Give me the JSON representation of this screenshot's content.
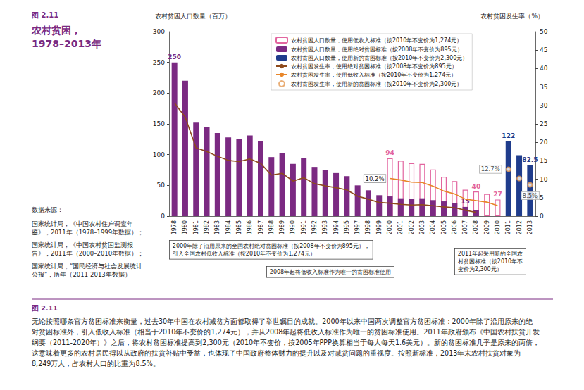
{
  "chart_data": {
    "type": "bar",
    "figure_label": "图 2.11",
    "title": "农村贫困，\n1978–2013年",
    "y_label": "农村贫困人口数量（百万）",
    "y2_label": "农村贫困发生率（%）",
    "categories": [
      "1978",
      "1980",
      "1981",
      "1982",
      "1983",
      "1984",
      "1985",
      "1986",
      "1987",
      "1988",
      "1989",
      "1990",
      "1991",
      "1992",
      "1993",
      "1994",
      "1995",
      "1997",
      "1998",
      "1999",
      "2000",
      "2001",
      "2002",
      "2003",
      "2004",
      "2005",
      "2006",
      "2007",
      "2008",
      "2009",
      "2010",
      "2011",
      "2012",
      "2013"
    ],
    "ylim": [
      0,
      300
    ],
    "yticks": [
      0,
      50,
      100,
      150,
      200,
      250,
      300
    ],
    "y2lim": [
      0,
      50
    ],
    "y2ticks": [
      0,
      5,
      10,
      15,
      20,
      25,
      30,
      35,
      40,
      45,
      50
    ],
    "grid": false,
    "legend": "top",
    "data_labels": true,
    "series": [
      {
        "name": "农村贫困人口数量，使用低收入标准（按2010年不变价为1,274元）",
        "type": "bar",
        "axis": "y",
        "color": "#e2659f",
        "marker": "hollow",
        "values": [
          null,
          null,
          null,
          null,
          null,
          null,
          null,
          null,
          null,
          null,
          null,
          null,
          null,
          null,
          null,
          null,
          null,
          null,
          null,
          null,
          94,
          90,
          86,
          85,
          76,
          64,
          57,
          43,
          40,
          36,
          27,
          null,
          null,
          null
        ],
        "value_labels": [
          null,
          null,
          null,
          null,
          null,
          null,
          null,
          null,
          null,
          null,
          null,
          null,
          null,
          null,
          null,
          null,
          null,
          null,
          null,
          null,
          "94",
          null,
          null,
          null,
          null,
          null,
          null,
          null,
          "40",
          null,
          "27",
          null,
          null,
          null
        ]
      },
      {
        "name": "农村贫困人口数量，使用绝对贫困标准（按2008年不变价为895元）",
        "type": "bar",
        "axis": "y",
        "color": "#7b2a82",
        "values": [
          250,
          220,
          152,
          145,
          135,
          128,
          125,
          131,
          122,
          96,
          102,
          85,
          94,
          80,
          75,
          70,
          65,
          50,
          42,
          34,
          32,
          29,
          28,
          29,
          26,
          24,
          21,
          15,
          10,
          null,
          null,
          null,
          null,
          null
        ],
        "value_labels": [
          "250",
          null,
          null,
          null,
          null,
          null,
          null,
          null,
          null,
          null,
          null,
          null,
          null,
          null,
          null,
          null,
          null,
          null,
          null,
          null,
          null,
          null,
          null,
          null,
          null,
          null,
          null,
          "15",
          null,
          null,
          null,
          null,
          null,
          null
        ]
      },
      {
        "name": "农村贫困人口数量，使用新的贫困标准（按2010年不变价为2,300元）",
        "type": "bar",
        "axis": "y",
        "color": "#1f3c8c",
        "values": [
          null,
          null,
          null,
          null,
          null,
          null,
          null,
          null,
          null,
          null,
          null,
          null,
          null,
          null,
          null,
          null,
          null,
          null,
          null,
          null,
          null,
          null,
          null,
          null,
          null,
          null,
          null,
          null,
          null,
          null,
          null,
          122,
          99,
          82.5
        ],
        "value_labels": [
          null,
          null,
          null,
          null,
          null,
          null,
          null,
          null,
          null,
          null,
          null,
          null,
          null,
          null,
          null,
          null,
          null,
          null,
          null,
          null,
          null,
          null,
          null,
          null,
          null,
          null,
          null,
          null,
          null,
          null,
          null,
          "122",
          null,
          "82.5"
        ]
      },
      {
        "name": "农村贫困发生率，使用绝对贫困标准（按2008年不变价为895元）",
        "type": "line",
        "axis": "y2",
        "color": "#8e4a1c",
        "line_style": "solid",
        "values": [
          30.7,
          26.8,
          18.5,
          17.5,
          16.2,
          15.1,
          14.8,
          15.5,
          14.3,
          11.1,
          11.6,
          9.5,
          10.4,
          8.8,
          8.2,
          7.7,
          7.1,
          5.4,
          4.6,
          3.7,
          3.5,
          3.2,
          3.0,
          3.1,
          2.8,
          2.5,
          2.3,
          1.6,
          1.0,
          null,
          null,
          null,
          null,
          null
        ]
      },
      {
        "name": "农村贫困发生率，使用低收入标准（按2010年不变价为1,274元）",
        "type": "line",
        "axis": "y2",
        "color": "#e8862a",
        "line_style": "solid",
        "values": [
          null,
          null,
          null,
          null,
          null,
          null,
          null,
          null,
          null,
          null,
          null,
          null,
          null,
          null,
          null,
          null,
          null,
          null,
          null,
          null,
          10.2,
          9.8,
          9.2,
          9.1,
          8.1,
          6.8,
          6.0,
          4.6,
          4.2,
          3.8,
          2.8,
          null,
          null,
          null
        ],
        "value_labels": [
          null,
          null,
          null,
          null,
          null,
          null,
          null,
          null,
          null,
          null,
          null,
          null,
          null,
          null,
          null,
          null,
          null,
          null,
          null,
          null,
          "10.2%",
          null,
          null,
          null,
          null,
          null,
          null,
          null,
          null,
          null,
          null,
          null,
          null,
          null
        ]
      },
      {
        "name": "农村贫困发生率，使用新的贫困标准（按2010年不变价为2,300元）",
        "type": "scatter",
        "axis": "y2",
        "color": "#e39a55",
        "marker": "emptyCircle",
        "values": [
          null,
          null,
          null,
          null,
          null,
          null,
          null,
          null,
          null,
          null,
          null,
          null,
          null,
          null,
          null,
          null,
          null,
          null,
          null,
          null,
          null,
          null,
          null,
          null,
          null,
          null,
          null,
          null,
          null,
          null,
          null,
          12.7,
          10.2,
          8.5
        ],
        "value_labels": [
          null,
          null,
          null,
          null,
          null,
          null,
          null,
          null,
          null,
          null,
          null,
          null,
          null,
          null,
          null,
          null,
          null,
          null,
          null,
          null,
          null,
          null,
          null,
          null,
          null,
          null,
          null,
          null,
          null,
          null,
          null,
          "12.7%",
          null,
          "8.5%"
        ]
      }
    ],
    "annotations": [
      "2000年除了沿用原来的全国农村绝对贫困标准（按2008年不变价为895元），\n引入全国农村低收入标准（按2010年不变价为1,274元）",
      "2008年起将低收入标准作为唯一的贫困标准使用",
      "2011年起采用新的全国农\n村贫困标准（按2010年不\n变价为2,300元）"
    ],
    "sources_title": "数据来源：",
    "sources": [
      "国家统计局，《中国农村住户调查年\n鉴》，2011年（1978–1999年数据）；",
      "国家统计局，《中国农村贫困监测报\n告》，2011年（2000–2010年数据）；",
      "国家统计局，“国民经济与社会发展统计\n公报”，历年（2011-2013年数据）"
    ],
    "caption_label": "图 2.11",
    "caption": "无论按照哪条官方贫困标准来衡量，过去30年中国在农村减贫方面都取得了举世瞩目的成就。2000年以来中国两次调整官方贫困标准：2000年除了沿用原来的绝\n对贫困标准外，引入低收入标准（相当于2010年不变价的1,274元），并从2008年起将低收入标准作为唯一的贫困标准使用。2011年政府颁布《中国农村扶贫开发\n纲要（2011-2020年）》之后，将农村贫困标准提高到2,300元（2010年不变价，按2005年PPP换算相当于每人每天1.6美元）。新的贫困标准几乎是原来的两倍，\n这意味着更多的农村居民得以从政府的扶贫补贴中受益，也体现了中国政府整体财力的提升以及对减贫问题的重视度。按照新标准，2013年末农村扶贫对象为\n8,249万人，占农村人口的比重为8.5%。"
  }
}
